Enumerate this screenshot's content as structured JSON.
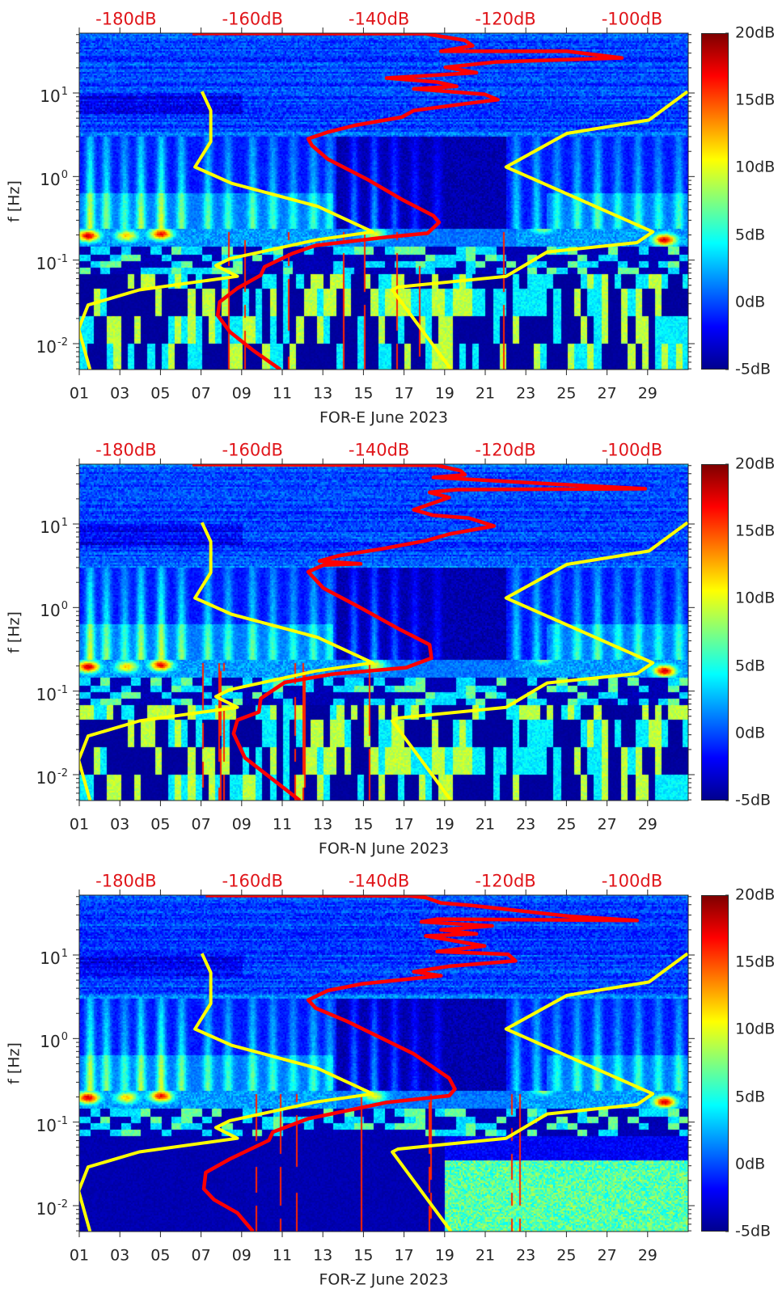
{
  "chart_data": [
    {
      "type": "heatmap",
      "xlabel": "FOR-E June 2023",
      "ylabel": "f [Hz]",
      "xlim": [
        1,
        31
      ],
      "xticks": [
        1,
        3,
        5,
        7,
        9,
        11,
        13,
        15,
        17,
        19,
        21,
        23,
        25,
        27,
        29
      ],
      "xtick_labels": [
        "01",
        "03",
        "05",
        "07",
        "09",
        "11",
        "13",
        "15",
        "17",
        "19",
        "21",
        "23",
        "25",
        "27",
        "29"
      ],
      "yscale": "log",
      "ylim": [
        0.0049,
        52
      ],
      "yticks": [
        {
          "value": 10,
          "base": "10",
          "exp": "1"
        },
        {
          "value": 1,
          "base": "10",
          "exp": "0"
        },
        {
          "value": 0.1,
          "base": "10",
          "exp": "-1"
        },
        {
          "value": 0.01,
          "base": "10",
          "exp": "-2"
        }
      ],
      "top_axis": {
        "xlim": [
          -187.4,
          -91.1
        ],
        "values": [
          -180,
          -160,
          -140,
          -120,
          -100
        ],
        "labels": [
          "-180dB",
          "-160dB",
          "-140dB",
          "-120dB",
          "-100dB"
        ]
      },
      "colorbar": {
        "colormap": "jet",
        "clim": [
          -5,
          20
        ],
        "values": [
          20,
          15,
          10,
          5,
          0,
          -5
        ],
        "labels": [
          "20dB",
          "15dB",
          "10dB",
          "5dB",
          "0dB",
          "-5dB"
        ]
      },
      "red_curve": {
        "color": "#ff0000",
        "points": [
          [
            -169.5,
            51.5
          ],
          [
            -132.6,
            51.3
          ],
          [
            -130.2,
            47.6
          ],
          [
            -126.4,
            42.6
          ],
          [
            -125.2,
            36.7
          ],
          [
            -130.2,
            31.6
          ],
          [
            -110.3,
            31.6
          ],
          [
            -101.6,
            26.3
          ],
          [
            -121.5,
            23.5
          ],
          [
            -129.5,
            20.3
          ],
          [
            -124.6,
            17.5
          ],
          [
            -138.8,
            15.1
          ],
          [
            -130.8,
            13.5
          ],
          [
            -127.7,
            12.0
          ],
          [
            -134.5,
            11.2
          ],
          [
            -123.3,
            9.64
          ],
          [
            -121.2,
            8.3
          ],
          [
            -126.4,
            7.43
          ],
          [
            -134.5,
            6.17
          ],
          [
            -136.4,
            5.13
          ],
          [
            -143.8,
            4.1
          ],
          [
            -148.1,
            3.4
          ],
          [
            -151.2,
            2.83
          ],
          [
            -150.6,
            2.35
          ],
          [
            -148.1,
            1.62
          ],
          [
            -141.9,
            0.93
          ],
          [
            -136.4,
            0.532
          ],
          [
            -131.4,
            0.34
          ],
          [
            -130.5,
            0.283
          ],
          [
            -132.3,
            0.21
          ],
          [
            -138.8,
            0.188
          ],
          [
            -150.0,
            0.15
          ],
          [
            -153.7,
            0.12
          ],
          [
            -158.1,
            0.083
          ],
          [
            -158.7,
            0.066
          ],
          [
            -162.4,
            0.046
          ],
          [
            -165.2,
            0.0316
          ],
          [
            -165.5,
            0.0218
          ],
          [
            -163.6,
            0.0139
          ],
          [
            -159.9,
            0.0083
          ],
          [
            -155.6,
            0.0049
          ]
        ]
      },
      "yellow_low_curve": {
        "color": "#ffff00",
        "points": [
          [
            -168.0,
            10.4
          ],
          [
            -166.6,
            6.17
          ],
          [
            -166.6,
            2.62
          ],
          [
            -169.1,
            1.3
          ],
          [
            -163.3,
            0.83
          ],
          [
            -149.7,
            0.44
          ],
          [
            -141.0,
            0.218
          ],
          [
            -150.0,
            0.174
          ],
          [
            -163.6,
            0.104
          ],
          [
            -165.8,
            0.086
          ],
          [
            -162.4,
            0.064
          ],
          [
            -177.9,
            0.044
          ],
          [
            -186.0,
            0.029
          ],
          [
            -187.5,
            0.015
          ],
          [
            -185.7,
            0.0049
          ]
        ]
      },
      "yellow_high_curve": {
        "color": "#ffff00",
        "points": [
          [
            -91.2,
            10.4
          ],
          [
            -97.3,
            4.75
          ],
          [
            -110.3,
            3.28
          ],
          [
            -119.9,
            1.3
          ],
          [
            -96.7,
            0.218
          ],
          [
            -99.2,
            0.162
          ],
          [
            -113.4,
            0.125
          ],
          [
            -119.9,
            0.064
          ],
          [
            -137.0,
            0.0476
          ],
          [
            -137.9,
            0.044
          ],
          [
            -128.6,
            0.0049
          ]
        ]
      }
    },
    {
      "type": "heatmap",
      "xlabel": "FOR-N June 2023",
      "ylabel": "f [Hz]",
      "xlim": [
        1,
        31
      ],
      "xticks": [
        1,
        3,
        5,
        7,
        9,
        11,
        13,
        15,
        17,
        19,
        21,
        23,
        25,
        27,
        29
      ],
      "xtick_labels": [
        "01",
        "03",
        "05",
        "07",
        "09",
        "11",
        "13",
        "15",
        "17",
        "19",
        "21",
        "23",
        "25",
        "27",
        "29"
      ],
      "yscale": "log",
      "ylim": [
        0.0049,
        52
      ],
      "yticks": [
        {
          "value": 10,
          "base": "10",
          "exp": "1"
        },
        {
          "value": 1,
          "base": "10",
          "exp": "0"
        },
        {
          "value": 0.1,
          "base": "10",
          "exp": "-1"
        },
        {
          "value": 0.01,
          "base": "10",
          "exp": "-2"
        }
      ],
      "top_axis": {
        "xlim": [
          -187.4,
          -91.1
        ],
        "values": [
          -180,
          -160,
          -140,
          -120,
          -100
        ],
        "labels": [
          "-180dB",
          "-160dB",
          "-140dB",
          "-120dB",
          "-100dB"
        ]
      },
      "colorbar": {
        "colormap": "jet",
        "clim": [
          -5,
          20
        ],
        "values": [
          20,
          15,
          10,
          5,
          0,
          -5
        ],
        "labels": [
          "20dB",
          "15dB",
          "10dB",
          "5dB",
          "0dB",
          "-5dB"
        ]
      },
      "red_curve": {
        "color": "#ff0000",
        "points": [
          [
            -169.5,
            51.5
          ],
          [
            -130.8,
            50.4
          ],
          [
            -127.1,
            43.4
          ],
          [
            -126.4,
            38.8
          ],
          [
            -131.4,
            36.1
          ],
          [
            -107.8,
            28.8
          ],
          [
            -97.9,
            26.4
          ],
          [
            -127.7,
            25.8
          ],
          [
            -132.0,
            23.9
          ],
          [
            -128.9,
            20.7
          ],
          [
            -134.5,
            14.8
          ],
          [
            -131.4,
            12.7
          ],
          [
            -125.8,
            11.8
          ],
          [
            -121.8,
            9.46
          ],
          [
            -128.9,
            7.57
          ],
          [
            -132.6,
            6.3
          ],
          [
            -139.5,
            5.04
          ],
          [
            -146.3,
            4.18
          ],
          [
            -149.4,
            3.6
          ],
          [
            -142.9,
            3.34
          ],
          [
            -148.8,
            3.22
          ],
          [
            -151.2,
            2.67
          ],
          [
            -148.8,
            1.71
          ],
          [
            -143.2,
            1.02
          ],
          [
            -137.0,
            0.562
          ],
          [
            -132.0,
            0.36
          ],
          [
            -131.7,
            0.248
          ],
          [
            -135.7,
            0.191
          ],
          [
            -147.5,
            0.159
          ],
          [
            -154.9,
            0.127
          ],
          [
            -158.7,
            0.0815
          ],
          [
            -159.0,
            0.0562
          ],
          [
            -162.4,
            0.045
          ],
          [
            -163.0,
            0.031
          ],
          [
            -161.2,
            0.0159
          ],
          [
            -152.5,
            0.0049
          ]
        ]
      },
      "yellow_low_curve": {
        "color": "#ffff00",
        "points": [
          [
            -168.0,
            10.4
          ],
          [
            -166.6,
            6.17
          ],
          [
            -166.6,
            2.62
          ],
          [
            -169.1,
            1.3
          ],
          [
            -163.3,
            0.83
          ],
          [
            -149.7,
            0.44
          ],
          [
            -141.0,
            0.218
          ],
          [
            -150.0,
            0.174
          ],
          [
            -163.6,
            0.104
          ],
          [
            -165.8,
            0.086
          ],
          [
            -162.4,
            0.064
          ],
          [
            -177.9,
            0.044
          ],
          [
            -186.0,
            0.029
          ],
          [
            -187.5,
            0.015
          ],
          [
            -185.7,
            0.0049
          ]
        ]
      },
      "yellow_high_curve": {
        "color": "#ffff00",
        "points": [
          [
            -91.2,
            10.4
          ],
          [
            -97.3,
            4.75
          ],
          [
            -110.3,
            3.28
          ],
          [
            -119.9,
            1.3
          ],
          [
            -96.7,
            0.218
          ],
          [
            -99.2,
            0.162
          ],
          [
            -113.4,
            0.125
          ],
          [
            -119.9,
            0.064
          ],
          [
            -137.0,
            0.0476
          ],
          [
            -137.9,
            0.044
          ],
          [
            -128.6,
            0.0049
          ]
        ]
      }
    },
    {
      "type": "heatmap",
      "xlabel": "FOR-Z June 2023",
      "ylabel": "f [Hz]",
      "xlim": [
        1,
        31
      ],
      "xticks": [
        1,
        3,
        5,
        7,
        9,
        11,
        13,
        15,
        17,
        19,
        21,
        23,
        25,
        27,
        29
      ],
      "xtick_labels": [
        "01",
        "03",
        "05",
        "07",
        "09",
        "11",
        "13",
        "15",
        "17",
        "19",
        "21",
        "23",
        "25",
        "27",
        "29"
      ],
      "yscale": "log",
      "ylim": [
        0.0049,
        52
      ],
      "yticks": [
        {
          "value": 10,
          "base": "10",
          "exp": "1"
        },
        {
          "value": 1,
          "base": "10",
          "exp": "0"
        },
        {
          "value": 0.1,
          "base": "10",
          "exp": "-1"
        },
        {
          "value": 0.01,
          "base": "10",
          "exp": "-2"
        }
      ],
      "top_axis": {
        "xlim": [
          -187.4,
          -91.1
        ],
        "values": [
          -180,
          -160,
          -140,
          -120,
          -100
        ],
        "labels": [
          "-180dB",
          "-160dB",
          "-140dB",
          "-120dB",
          "-100dB"
        ]
      },
      "colorbar": {
        "colormap": "jet",
        "clim": [
          -5,
          20
        ],
        "values": [
          20,
          15,
          10,
          5,
          0,
          -5
        ],
        "labels": [
          "20dB",
          "15dB",
          "10dB",
          "5dB",
          "0dB",
          "-5dB"
        ]
      },
      "red_curve": {
        "color": "#ff0000",
        "points": [
          [
            -167.4,
            51.5
          ],
          [
            -135.1,
            51.0
          ],
          [
            -132.6,
            48.6
          ],
          [
            -130.2,
            42.0
          ],
          [
            -125.2,
            39.0
          ],
          [
            -109.7,
            29.0
          ],
          [
            -99.2,
            25.9
          ],
          [
            -130.8,
            26.9
          ],
          [
            -133.3,
            24.9
          ],
          [
            -122.1,
            22.3
          ],
          [
            -130.2,
            20.0
          ],
          [
            -124.6,
            17.9
          ],
          [
            -132.6,
            16.9
          ],
          [
            -123.3,
            12.8
          ],
          [
            -130.8,
            11.0
          ],
          [
            -119.6,
            10.2
          ],
          [
            -118.4,
            8.49
          ],
          [
            -128.9,
            7.33
          ],
          [
            -134.5,
            6.31
          ],
          [
            -130.2,
            5.65
          ],
          [
            -142.6,
            4.52
          ],
          [
            -148.1,
            3.75
          ],
          [
            -151.2,
            2.89
          ],
          [
            -150.0,
            2.31
          ],
          [
            -145.0,
            1.6
          ],
          [
            -134.5,
            0.655
          ],
          [
            -128.9,
            0.335
          ],
          [
            -128.0,
            0.249
          ],
          [
            -128.9,
            0.207
          ],
          [
            -138.8,
            0.172
          ],
          [
            -151.2,
            0.11
          ],
          [
            -156.8,
            0.0759
          ],
          [
            -157.4,
            0.0607
          ],
          [
            -163.6,
            0.0361
          ],
          [
            -167.4,
            0.0249
          ],
          [
            -167.7,
            0.0159
          ],
          [
            -166.1,
            0.0118
          ],
          [
            -162.4,
            0.0082
          ],
          [
            -159.9,
            0.0049
          ]
        ]
      },
      "yellow_low_curve": {
        "color": "#ffff00",
        "points": [
          [
            -168.0,
            10.4
          ],
          [
            -166.6,
            6.17
          ],
          [
            -166.6,
            2.62
          ],
          [
            -169.1,
            1.3
          ],
          [
            -163.3,
            0.83
          ],
          [
            -149.7,
            0.44
          ],
          [
            -141.0,
            0.218
          ],
          [
            -150.0,
            0.174
          ],
          [
            -163.6,
            0.104
          ],
          [
            -165.8,
            0.086
          ],
          [
            -162.4,
            0.064
          ],
          [
            -177.9,
            0.044
          ],
          [
            -186.0,
            0.029
          ],
          [
            -187.5,
            0.015
          ],
          [
            -185.7,
            0.0049
          ]
        ]
      },
      "yellow_high_curve": {
        "color": "#ffff00",
        "points": [
          [
            -91.2,
            10.4
          ],
          [
            -97.3,
            4.75
          ],
          [
            -110.3,
            3.28
          ],
          [
            -119.9,
            1.3
          ],
          [
            -96.7,
            0.218
          ],
          [
            -99.2,
            0.162
          ],
          [
            -113.4,
            0.125
          ],
          [
            -119.9,
            0.064
          ],
          [
            -137.0,
            0.0476
          ],
          [
            -137.9,
            0.044
          ],
          [
            -128.6,
            0.0049
          ]
        ]
      }
    }
  ]
}
